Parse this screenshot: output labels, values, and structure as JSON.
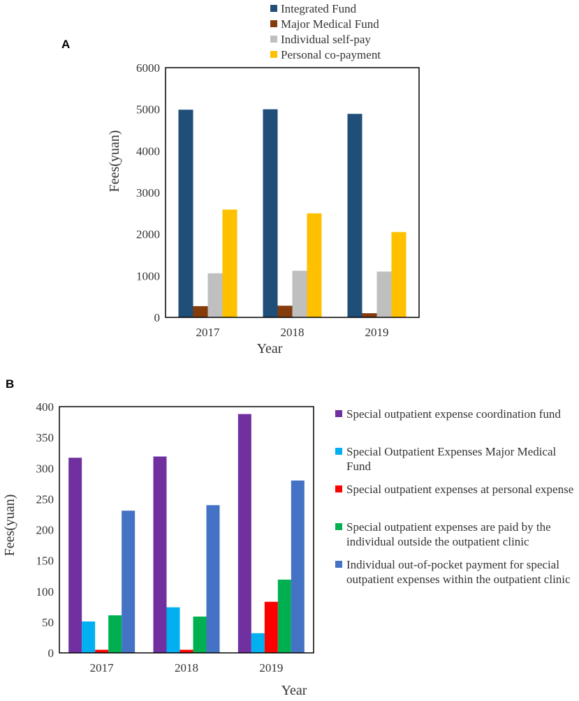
{
  "chart_data": [
    {
      "panel": "A",
      "type": "bar",
      "categories": [
        "2017",
        "2018",
        "2019"
      ],
      "series": [
        {
          "name": "Integrated Fund",
          "color": "#1f4e79",
          "values": [
            4990,
            5000,
            4890
          ]
        },
        {
          "name": "Major Medical Fund",
          "color": "#843c0c",
          "values": [
            270,
            280,
            100
          ]
        },
        {
          "name": "Individual self-pay",
          "color": "#bfbfbf",
          "values": [
            1060,
            1120,
            1100
          ]
        },
        {
          "name": "Personal co-payment",
          "color": "#ffc000",
          "values": [
            2590,
            2500,
            2050
          ]
        }
      ],
      "xlabel": "Year",
      "ylabel": "Fees(yuan)",
      "ylim": [
        0,
        6000
      ],
      "yticks": [
        0,
        1000,
        2000,
        3000,
        4000,
        5000,
        6000
      ],
      "legend_position": "top"
    },
    {
      "panel": "B",
      "type": "bar",
      "categories": [
        "2017",
        "2018",
        "2019"
      ],
      "series": [
        {
          "name": "Special outpatient expense coordination fund",
          "color": "#7030a0",
          "values": [
            317,
            319,
            388
          ]
        },
        {
          "name": "Special Outpatient Expenses Major Medical Fund",
          "color": "#00b0f0",
          "values": [
            51,
            74,
            32
          ]
        },
        {
          "name": "Special outpatient expenses at personal expense",
          "color": "#ff0000",
          "values": [
            5,
            5,
            83
          ]
        },
        {
          "name": "Special outpatient expenses are paid by the individual outside the outpatient clinic",
          "color": "#00b050",
          "values": [
            61,
            59,
            119
          ]
        },
        {
          "name": "Individual out-of-pocket payment for special outpatient expenses within the outpatient clinic",
          "color": "#4472c4",
          "values": [
            231,
            240,
            280
          ]
        }
      ],
      "xlabel": "Year",
      "ylabel": "Fees(yuan)",
      "ylim": [
        0,
        400
      ],
      "yticks": [
        0,
        50,
        100,
        150,
        200,
        250,
        300,
        350,
        400
      ],
      "legend_position": "right"
    }
  ]
}
